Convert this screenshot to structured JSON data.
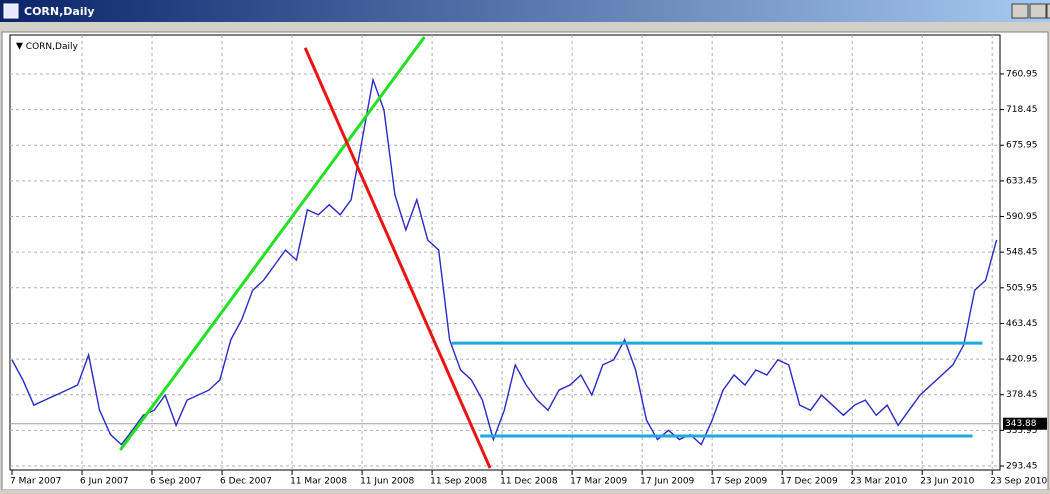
{
  "window": {
    "title": "CORN,Daily"
  },
  "chart_data": {
    "type": "line",
    "title": "CORN,Daily",
    "series": [
      {
        "color": "#2a2ac8",
        "x": [
          0,
          10,
          20,
          30,
          40,
          50,
          60,
          70,
          80,
          90,
          100,
          110,
          120,
          130,
          140,
          150,
          160,
          170,
          180,
          190,
          200,
          210,
          220,
          230,
          240,
          250,
          260,
          270,
          280,
          290,
          300,
          310,
          320,
          330,
          340,
          350,
          360,
          370,
          380,
          390,
          400,
          410,
          420,
          430,
          440,
          450,
          460,
          470,
          480,
          490,
          500,
          510,
          520,
          530,
          540,
          550,
          560,
          570,
          580,
          590,
          600,
          610,
          620,
          630,
          640,
          650,
          660,
          670,
          680,
          690,
          700,
          710,
          720,
          730,
          740,
          750,
          760,
          770,
          780,
          790,
          800,
          810,
          820,
          830,
          840,
          850,
          860,
          870,
          880,
          890,
          900
        ],
        "values": [
          420,
          396,
          366,
          372,
          378,
          384,
          390,
          426,
          360,
          331,
          319,
          336,
          354,
          360,
          378,
          342,
          372,
          378,
          384,
          396,
          444,
          468,
          503,
          515,
          533,
          551,
          539,
          599,
          593,
          605,
          593,
          611,
          682,
          754,
          718,
          617,
          575,
          611,
          563,
          551,
          444,
          408,
          396,
          372,
          325,
          360,
          414,
          390,
          372,
          360,
          384,
          390,
          402,
          378,
          414,
          420,
          444,
          408,
          348,
          325,
          336,
          325,
          331,
          319,
          348,
          384,
          402,
          390,
          408,
          402,
          420,
          414,
          366,
          360,
          378,
          366,
          354,
          366,
          372,
          354,
          366,
          342,
          360,
          378,
          390,
          402,
          414,
          438,
          503,
          515,
          563
        ]
      }
    ],
    "lines": [
      {
        "color": "#22e022",
        "x": [
          99,
          377
        ],
        "y": [
          312.6,
          805
        ]
      },
      {
        "color": "#ee1111",
        "x": [
          268,
          437
        ],
        "y": [
          792,
          291
        ]
      },
      {
        "color": "#1ea8e0",
        "x": [
          402,
          887
        ],
        "y": [
          440,
          440
        ]
      },
      {
        "color": "#1ea8e0",
        "x": [
          428,
          878
        ],
        "y": [
          329.3,
          329.3
        ]
      }
    ],
    "current_price": 343.88,
    "xlim": [
      0,
      903
    ],
    "xticks": [
      {
        "value": 0,
        "label": "7 Mar 2007"
      },
      {
        "value": 64,
        "label": "6 Jun 2007"
      },
      {
        "value": 128,
        "label": "6 Sep 2007"
      },
      {
        "value": 192,
        "label": "6 Dec 2007"
      },
      {
        "value": 256,
        "label": "11 Mar 2008"
      },
      {
        "value": 320,
        "label": "11 Jun 2008"
      },
      {
        "value": 384,
        "label": "11 Sep 2008"
      },
      {
        "value": 448,
        "label": "11 Dec 2008"
      },
      {
        "value": 512,
        "label": "17 Mar 2009"
      },
      {
        "value": 576,
        "label": "17 Jun 2009"
      },
      {
        "value": 640,
        "label": "17 Sep 2009"
      },
      {
        "value": 704,
        "label": "17 Dec 2009"
      },
      {
        "value": 768,
        "label": "23 Mar 2010"
      },
      {
        "value": 832,
        "label": "23 Jun 2010"
      },
      {
        "value": 896,
        "label": "23 Sep 2010"
      }
    ],
    "ylim": [
      288.7,
      807.4
    ],
    "yticks": [
      293.45,
      335.95,
      378.45,
      420.95,
      463.45,
      505.95,
      548.45,
      590.95,
      633.45,
      675.95,
      718.45,
      760.95
    ],
    "grid": true
  }
}
